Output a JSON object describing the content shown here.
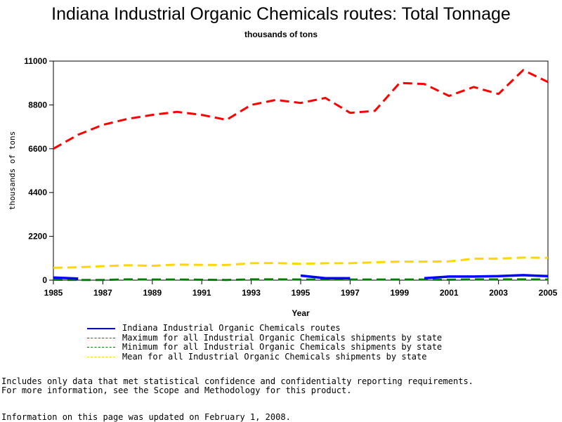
{
  "chart_data": {
    "type": "line",
    "title": "Indiana Industrial Organic Chemicals routes: Total Tonnage",
    "subtitle": "thousands of tons",
    "xlabel": "Year",
    "ylabel": "thousands of tons",
    "xlim": [
      1985,
      2005
    ],
    "ylim": [
      0,
      11000
    ],
    "x_ticks": [
      1985,
      1987,
      1989,
      1991,
      1993,
      1995,
      1997,
      1999,
      2001,
      2003,
      2005
    ],
    "y_ticks": [
      0,
      2200,
      4400,
      6600,
      8800,
      11000
    ],
    "grid": false,
    "legend_position": "bottom",
    "x": [
      1985,
      1986,
      1987,
      1988,
      1989,
      1990,
      1991,
      1992,
      1993,
      1994,
      1995,
      1996,
      1997,
      1998,
      1999,
      2000,
      2001,
      2002,
      2003,
      2004,
      2005
    ],
    "series": [
      {
        "name": "Indiana Industrial Organic Chemicals routes",
        "color": "#0000ff",
        "style": "solid",
        "values": [
          130,
          80,
          null,
          null,
          null,
          null,
          null,
          null,
          null,
          null,
          230,
          100,
          100,
          null,
          null,
          100,
          180,
          180,
          200,
          250,
          200
        ]
      },
      {
        "name": "Maximum for all Industrial Organic Chemicals shipments by state",
        "color": "#ff0000",
        "style": "dashed",
        "values": [
          6600,
          7300,
          7800,
          8100,
          8300,
          8450,
          8300,
          8050,
          8800,
          9050,
          8900,
          9150,
          8400,
          8500,
          9900,
          9850,
          9250,
          9700,
          9350,
          10550,
          9950
        ]
      },
      {
        "name": "Minimum for all Industrial Organic Chemicals shipments by state",
        "color": "#008000",
        "style": "dashed",
        "values": [
          20,
          10,
          10,
          40,
          30,
          30,
          20,
          10,
          40,
          40,
          30,
          30,
          30,
          30,
          30,
          30,
          20,
          40,
          40,
          40,
          30
        ]
      },
      {
        "name": "Mean for all Industrial Organic Chemicals shipments by state",
        "color": "#ffd700",
        "style": "dashed",
        "values": [
          620,
          650,
          700,
          750,
          720,
          780,
          770,
          760,
          850,
          860,
          820,
          850,
          850,
          900,
          930,
          930,
          940,
          1080,
          1080,
          1130,
          1120
        ]
      }
    ]
  },
  "footnotes": [
    "Includes only data that met statistical confidence and confidentialty reporting requirements.",
    "For more information, see the Scope and Methodology for this product.",
    "Information on this page was updated on February 1, 2008."
  ]
}
